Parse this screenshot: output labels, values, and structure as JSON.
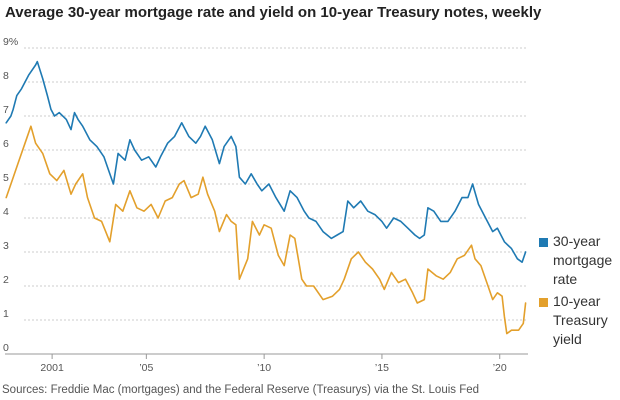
{
  "chart_data": {
    "type": "line",
    "title": "Average 30-year mortgage rate and yield on 10-year Treasury notes, weekly",
    "source": "Sources: Freddie Mac (mortgages) and the Federal Reserve (Treasurys) via the St. Louis Fed",
    "xlim": [
      1999.0,
      2021.2
    ],
    "ylim": [
      0,
      9
    ],
    "y_ticks": [
      0,
      1,
      2,
      3,
      4,
      5,
      6,
      7,
      8,
      9
    ],
    "y_tick_labels": [
      "0",
      "1",
      "2",
      "3",
      "4",
      "5",
      "6",
      "7",
      "8",
      "9%"
    ],
    "x_ticks": [
      2001,
      2005,
      2010,
      2015,
      2020
    ],
    "x_tick_labels": [
      "2001",
      "’05",
      "’10",
      "’15",
      "’20"
    ],
    "grid": true,
    "legend_placement": "right",
    "series": [
      {
        "name": "30-year mortgage rate",
        "legend_lines": [
          "30-year",
          "mortgage",
          "rate"
        ],
        "color": "#1f7ab3",
        "x": [
          1999.05,
          1999.25,
          1999.35,
          1999.5,
          1999.7,
          2000.0,
          2000.3,
          2000.37,
          2000.6,
          2000.8,
          2000.95,
          2001.1,
          2001.3,
          2001.6,
          2001.8,
          2001.95,
          2002.1,
          2002.3,
          2002.6,
          2002.9,
          2003.2,
          2003.45,
          2003.6,
          2003.8,
          2004.1,
          2004.3,
          2004.5,
          2004.8,
          2005.1,
          2005.4,
          2005.6,
          2005.9,
          2006.2,
          2006.5,
          2006.8,
          2007.1,
          2007.3,
          2007.5,
          2007.8,
          2008.1,
          2008.3,
          2008.6,
          2008.8,
          2008.95,
          2009.2,
          2009.45,
          2009.7,
          2009.9,
          2010.2,
          2010.5,
          2010.85,
          2011.1,
          2011.4,
          2011.7,
          2011.9,
          2012.2,
          2012.5,
          2012.85,
          2013.1,
          2013.35,
          2013.55,
          2013.8,
          2014.1,
          2014.4,
          2014.7,
          2015.0,
          2015.2,
          2015.5,
          2015.8,
          2016.1,
          2016.4,
          2016.6,
          2016.8,
          2016.95,
          2017.2,
          2017.5,
          2017.8,
          2018.1,
          2018.4,
          2018.65,
          2018.85,
          2019.1,
          2019.4,
          2019.7,
          2019.9,
          2020.2,
          2020.5,
          2020.75,
          2020.95,
          2021.1
        ],
        "values": [
          6.8,
          7.0,
          7.2,
          7.6,
          7.8,
          8.2,
          8.5,
          8.6,
          8.1,
          7.6,
          7.2,
          7.0,
          7.1,
          6.9,
          6.6,
          7.1,
          6.9,
          6.7,
          6.3,
          6.1,
          5.8,
          5.3,
          5.0,
          5.9,
          5.7,
          6.3,
          6.0,
          5.7,
          5.8,
          5.5,
          5.8,
          6.2,
          6.4,
          6.8,
          6.4,
          6.2,
          6.4,
          6.7,
          6.3,
          5.6,
          6.1,
          6.4,
          6.1,
          5.2,
          5.0,
          5.3,
          5.0,
          4.8,
          5.0,
          4.6,
          4.2,
          4.8,
          4.6,
          4.2,
          4.0,
          3.9,
          3.6,
          3.4,
          3.5,
          3.6,
          4.5,
          4.3,
          4.5,
          4.2,
          4.1,
          3.9,
          3.7,
          4.0,
          3.9,
          3.7,
          3.5,
          3.4,
          3.5,
          4.3,
          4.2,
          3.9,
          3.9,
          4.2,
          4.6,
          4.6,
          5.0,
          4.4,
          4.0,
          3.6,
          3.7,
          3.3,
          3.1,
          2.8,
          2.7,
          3.0
        ]
      },
      {
        "name": "10-year Treasury yield",
        "legend_lines": [
          "10-year",
          "Treasury",
          "yield"
        ],
        "color": "#e3a02c",
        "x": [
          1999.05,
          1999.3,
          1999.6,
          1999.9,
          2000.1,
          2000.3,
          2000.6,
          2000.9,
          2001.2,
          2001.5,
          2001.8,
          2002.0,
          2002.3,
          2002.5,
          2002.8,
          2003.1,
          2003.45,
          2003.7,
          2004.0,
          2004.3,
          2004.6,
          2004.9,
          2005.2,
          2005.5,
          2005.8,
          2006.1,
          2006.4,
          2006.6,
          2006.9,
          2007.2,
          2007.4,
          2007.6,
          2007.9,
          2008.1,
          2008.4,
          2008.6,
          2008.8,
          2008.95,
          2009.3,
          2009.5,
          2009.8,
          2010.0,
          2010.3,
          2010.6,
          2010.85,
          2011.1,
          2011.3,
          2011.6,
          2011.8,
          2012.1,
          2012.5,
          2012.9,
          2013.2,
          2013.4,
          2013.7,
          2014.0,
          2014.3,
          2014.6,
          2014.9,
          2015.1,
          2015.4,
          2015.7,
          2016.0,
          2016.3,
          2016.5,
          2016.8,
          2016.95,
          2017.3,
          2017.6,
          2017.9,
          2018.2,
          2018.5,
          2018.8,
          2018.95,
          2019.2,
          2019.5,
          2019.7,
          2019.9,
          2020.1,
          2020.2,
          2020.3,
          2020.5,
          2020.8,
          2021.0,
          2021.1
        ],
        "values": [
          4.6,
          5.1,
          5.7,
          6.3,
          6.7,
          6.2,
          5.9,
          5.3,
          5.1,
          5.4,
          4.7,
          5.0,
          5.3,
          4.6,
          4.0,
          3.9,
          3.3,
          4.4,
          4.2,
          4.8,
          4.3,
          4.2,
          4.4,
          4.0,
          4.5,
          4.6,
          5.0,
          5.1,
          4.6,
          4.7,
          5.2,
          4.7,
          4.2,
          3.6,
          4.1,
          3.9,
          3.8,
          2.2,
          2.8,
          3.9,
          3.5,
          3.8,
          3.7,
          2.9,
          2.6,
          3.5,
          3.4,
          2.2,
          2.0,
          2.0,
          1.6,
          1.7,
          1.9,
          2.2,
          2.8,
          3.0,
          2.7,
          2.5,
          2.2,
          1.9,
          2.4,
          2.1,
          2.2,
          1.8,
          1.5,
          1.6,
          2.5,
          2.3,
          2.2,
          2.4,
          2.8,
          2.9,
          3.2,
          2.8,
          2.6,
          2.0,
          1.6,
          1.8,
          1.7,
          1.1,
          0.6,
          0.7,
          0.7,
          0.9,
          1.5
        ]
      }
    ]
  }
}
